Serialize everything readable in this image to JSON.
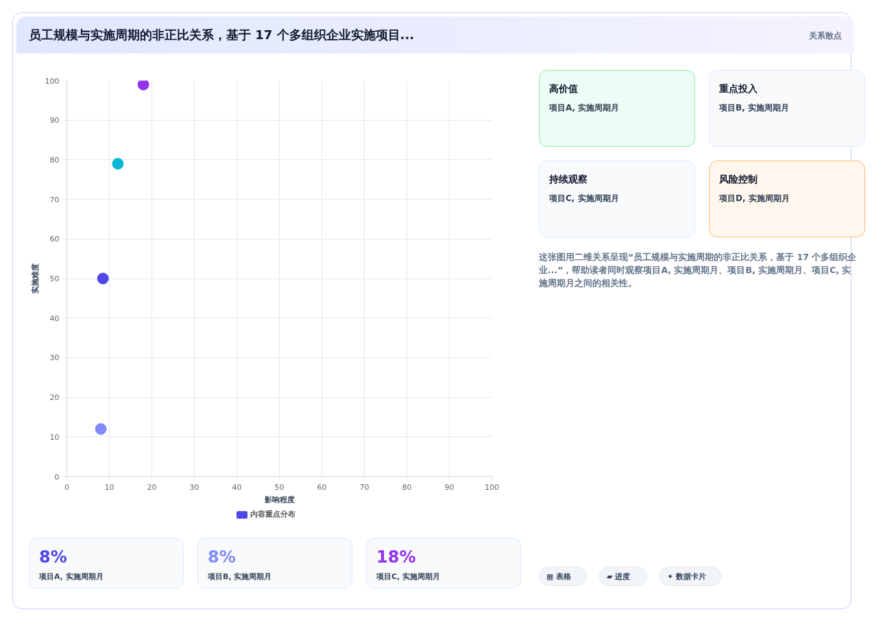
{
  "chart_data": {
    "type": "scatter",
    "title": "员工规模与实施周期的非正比关系，基于 17 个多组织企业实施项目...",
    "xlabel": "影响程度",
    "ylabel": "实施难度",
    "x": [
      18,
      12,
      8.5,
      8
    ],
    "series": [
      {
        "name": "内容重点分布",
        "color": "#4f46e5",
        "colors": [
          "#9333ea",
          "#06b6d4",
          "#4f46e5",
          "#818cf8"
        ],
        "values": [
          99,
          79,
          50,
          12
        ]
      }
    ],
    "xlim": [
      0,
      100
    ],
    "ylim": [
      0,
      100
    ],
    "xticks": [
      0,
      10,
      20,
      30,
      40,
      50,
      60,
      70,
      80,
      90,
      100
    ],
    "yticks": [
      0,
      10,
      20,
      30,
      40,
      50,
      60,
      70,
      80,
      90,
      100
    ],
    "grid": true,
    "legend": "bottom",
    "marker": "circle",
    "annotations": [
      "关系散点",
      "高价值",
      "项目A, 实施周期月",
      "重点投入",
      "项目B, 实施周期月",
      "持续观察",
      "项目C, 实施周期月",
      "风险控制",
      "项目D, 实施周期月",
      "这张图用二维关系呈现“员工规模与实施周期的非正比关系，基于 17 个多组织企业...”，帮助读者同时观察项目A, 实施周期月、项目B, 实施周期月、项目C, 实施周期月之间的相关性。",
      "8%",
      "项目A, 实施周期月",
      "8%",
      "项目B, 实施周期月",
      "18%",
      "项目C, 实施周期月",
      "▦ 表格",
      "▰ 进度",
      "✦ 数据卡片"
    ]
  }
}
